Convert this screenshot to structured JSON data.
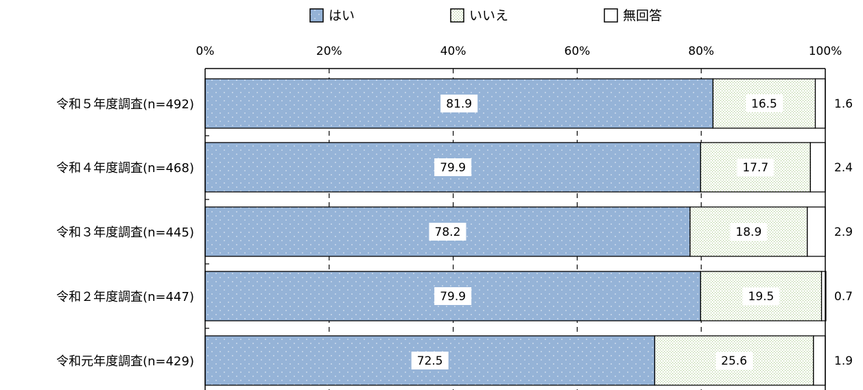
{
  "chart_data": {
    "type": "bar",
    "orientation": "horizontal",
    "stacked": true,
    "categories": [
      "令和５年度調査(n=492)",
      "令和４年度調査(n=468)",
      "令和３年度調査(n=445)",
      "令和２年度調査(n=447)",
      "令和元年度調査(n=429)"
    ],
    "series": [
      {
        "name": "はい",
        "values": [
          81.9,
          79.9,
          78.2,
          79.9,
          72.5
        ],
        "color": "#95b3d7",
        "pattern": "dots"
      },
      {
        "name": "いいえ",
        "values": [
          16.5,
          17.7,
          18.9,
          19.5,
          25.6
        ],
        "color": "#ebf1de",
        "pattern": "fine-dots"
      },
      {
        "name": "無回答",
        "values": [
          1.6,
          2.4,
          2.9,
          0.7,
          1.9
        ],
        "color": "#ffffff",
        "pattern": "none"
      }
    ],
    "xlim": [
      0,
      100
    ],
    "tick_labels": [
      "0%",
      "20%",
      "40%",
      "60%",
      "80%",
      "100%"
    ],
    "legend_position": "top",
    "gridlines": "dashed-vertical"
  }
}
